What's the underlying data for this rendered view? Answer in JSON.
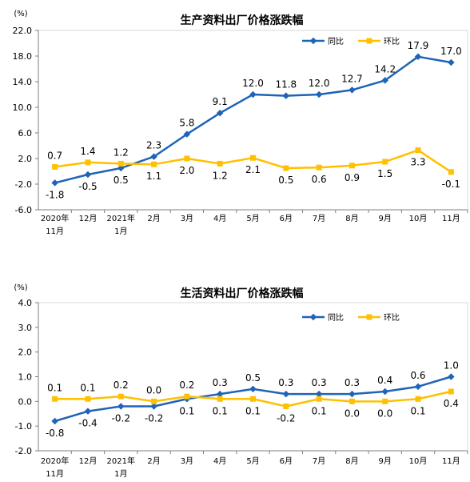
{
  "colors": {
    "yoy": "#1f64b7",
    "mom": "#ffc000",
    "axis": "#7f7f7f"
  },
  "legend": {
    "yoy": "同比",
    "mom": "环比"
  },
  "chart_data": [
    {
      "type": "line",
      "title": "生产资料出厂价格涨跌幅",
      "ylabel": "(%)",
      "xlabel": "",
      "categories": [
        "2020年\n11月",
        "12月",
        "2021年\n1月",
        "2月",
        "3月",
        "4月",
        "5月",
        "6月",
        "7月",
        "8月",
        "9月",
        "10月",
        "11月"
      ],
      "ylim": [
        -6.0,
        22.0
      ],
      "yticks": [
        "22.0",
        "18.0",
        "14.0",
        "10.0",
        "6.0",
        "2.0",
        "-2.0",
        "-6.0"
      ],
      "legend_position": "top-right",
      "series": [
        {
          "name": "同比",
          "values": [
            -1.8,
            -0.5,
            0.5,
            2.3,
            5.8,
            9.1,
            12.0,
            11.8,
            12.0,
            12.7,
            14.2,
            17.9,
            17.0
          ],
          "labels": [
            "-1.8",
            "-0.5",
            "0.5",
            "2.3",
            "5.8",
            "9.1",
            "12.0",
            "11.8",
            "12.0",
            "12.7",
            "14.2",
            "17.9",
            "17.0"
          ]
        },
        {
          "name": "环比",
          "values": [
            0.7,
            1.4,
            1.2,
            1.1,
            2.0,
            1.2,
            2.1,
            0.5,
            0.6,
            0.9,
            1.5,
            3.3,
            -0.1
          ],
          "labels": [
            "0.7",
            "1.4",
            "1.2",
            "1.1",
            "2.0",
            "1.2",
            "2.1",
            "0.5",
            "0.6",
            "0.9",
            "1.5",
            "3.3",
            "-0.1"
          ]
        }
      ]
    },
    {
      "type": "line",
      "title": "生活资料出厂价格涨跌幅",
      "ylabel": "(%)",
      "xlabel": "",
      "categories": [
        "2020年\n11月",
        "12月",
        "2021年\n1月",
        "2月",
        "3月",
        "4月",
        "5月",
        "6月",
        "7月",
        "8月",
        "9月",
        "10月",
        "11月"
      ],
      "ylim": [
        -2.0,
        4.0
      ],
      "yticks": [
        "4.0",
        "3.0",
        "2.0",
        "1.0",
        "0.0",
        "-1.0",
        "-2.0"
      ],
      "legend_position": "top-right",
      "series": [
        {
          "name": "同比",
          "values": [
            -0.8,
            -0.4,
            -0.2,
            -0.2,
            0.1,
            0.3,
            0.5,
            0.3,
            0.3,
            0.3,
            0.4,
            0.6,
            1.0
          ],
          "labels": [
            "-0.8",
            "-0.4",
            "-0.2",
            "-0.2",
            "0.1",
            "0.3",
            "0.5",
            "0.3",
            "0.3",
            "0.3",
            "0.4",
            "0.6",
            "1.0"
          ]
        },
        {
          "name": "环比",
          "values": [
            0.1,
            0.1,
            0.2,
            0.0,
            0.2,
            0.1,
            0.1,
            -0.2,
            0.1,
            0.0,
            0.0,
            0.1,
            0.4
          ],
          "labels": [
            "0.1",
            "0.1",
            "0.2",
            "0.0",
            "0.2",
            "0.1",
            "0.1",
            "-0.2",
            "0.1",
            "0.0",
            "0.0",
            "0.1",
            "0.4"
          ]
        }
      ]
    }
  ]
}
